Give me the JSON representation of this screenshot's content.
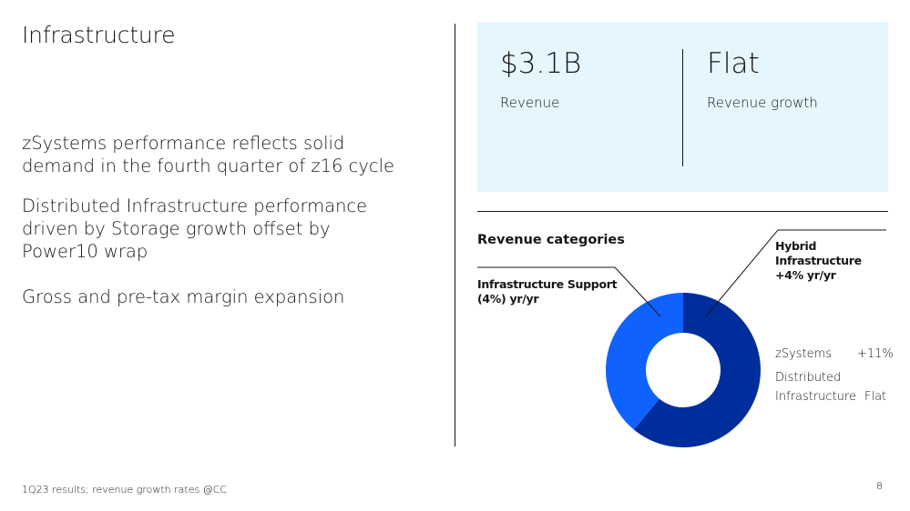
{
  "title": "Infrastructure",
  "bullets": [
    "zSystems performance reflects solid demand in the fourth quarter of z16 cycle",
    "Distributed Infrastructure performance driven by Storage growth offset by Power10 wrap",
    "Gross and pre-tax margin expansion"
  ],
  "kpis": [
    {
      "value": "$3.1B",
      "label": "Revenue"
    },
    {
      "value": "Flat",
      "label": "Revenue growth"
    }
  ],
  "section_title": "Revenue categories",
  "callouts": {
    "hybrid": [
      "Hybrid",
      "Infrastructure",
      "+4% yr/yr"
    ],
    "support": [
      "Infrastructure Support",
      "(4%) yr/yr"
    ]
  },
  "legend": [
    {
      "name": "zSystems",
      "value": "+11%"
    },
    {
      "name_line1": "Distributed",
      "name_line2": "Infrastructure",
      "value": "Flat"
    }
  ],
  "chart_data": {
    "type": "pie",
    "variant": "donut",
    "slices": [
      {
        "label": "Hybrid Infrastructure",
        "value": 0.61,
        "color": "#002d9c"
      },
      {
        "label": "Infrastructure Support",
        "value": 0.39,
        "color": "#0f62fe"
      }
    ]
  },
  "footnote": "1Q23 results; revenue growth rates @CC",
  "page_number": "8"
}
